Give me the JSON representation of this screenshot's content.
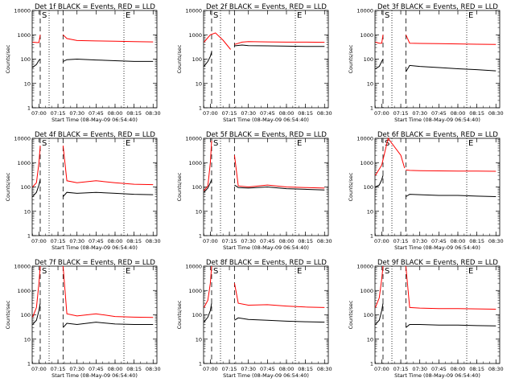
{
  "colors": {
    "events": "#000000",
    "lld": "#ff0000",
    "background": "#ffffff"
  },
  "chart_data": {
    "type": "line",
    "layout_rows": 3,
    "layout_cols": 3,
    "yscale": "log",
    "ylabel": "Counts/sec",
    "xlabel": "Start Time (08-May-09 06:54:40)",
    "xlim": [
      "06:54:40",
      "08:33"
    ],
    "ylim": [
      1,
      10000
    ],
    "xticks": [
      "07:00",
      "07:15",
      "07:30",
      "07:45",
      "08:00",
      "08:15",
      "08:30"
    ],
    "yticks": [
      1,
      10,
      100,
      1000,
      10000
    ],
    "ytick_labels": [
      "1",
      "10",
      "100",
      "1000",
      "10000"
    ],
    "series_legend": "BLACK = Events, RED = LLD",
    "markers": {
      "start": "S",
      "end": "E"
    },
    "panels": [
      {
        "title": "Det 1f BLACK = Events, RED = LLD",
        "dashed_times": [
          "07:01",
          "07:19"
        ],
        "dotted_times": [
          "07:08",
          "08:07"
        ],
        "events": {
          "x": [
            "06:55",
            "06:58",
            "07:00",
            "07:01"
          ],
          "y": [
            45,
            60,
            90,
            100
          ]
        },
        "lld": {
          "x": [
            "06:55",
            "06:58",
            "07:00",
            "07:01"
          ],
          "y": [
            500,
            480,
            480,
            1000
          ]
        },
        "post": {
          "x": [
            "07:19",
            "07:22",
            "07:30",
            "07:45",
            "08:00",
            "08:15",
            "08:30"
          ],
          "events": [
            80,
            95,
            100,
            92,
            86,
            80,
            80
          ],
          "lld": [
            1000,
            700,
            580,
            560,
            540,
            520,
            510
          ]
        }
      },
      {
        "title": "Det 2f BLACK = Events, RED = LLD",
        "dashed_times": [
          "07:01",
          "07:19"
        ],
        "dotted_times": [
          "07:08",
          "08:07"
        ],
        "events": {
          "x": [
            "06:55",
            "06:58",
            "07:00",
            "07:01"
          ],
          "y": [
            50,
            80,
            130,
            200
          ]
        },
        "lld": {
          "x": [
            "06:55",
            "07:00",
            "07:04",
            "07:10",
            "07:16"
          ],
          "y": [
            500,
            1000,
            1200,
            600,
            250
          ]
        },
        "post": {
          "x": [
            "07:19",
            "07:25",
            "07:30",
            "07:45",
            "08:00",
            "08:15",
            "08:30"
          ],
          "events": [
            350,
            380,
            360,
            350,
            340,
            330,
            330
          ],
          "lld": [
            400,
            500,
            520,
            510,
            500,
            500,
            490
          ]
        }
      },
      {
        "title": "Det 3f BLACK = Events, RED = LLD",
        "dashed_times": [
          "07:01",
          "07:19"
        ],
        "dotted_times": [
          "07:08",
          "08:07"
        ],
        "events": {
          "x": [
            "06:55",
            "06:58",
            "07:00",
            "07:01"
          ],
          "y": [
            40,
            50,
            80,
            100
          ]
        },
        "lld": {
          "x": [
            "06:55",
            "06:58",
            "07:00",
            "07:01"
          ],
          "y": [
            500,
            450,
            450,
            1000
          ]
        },
        "post": {
          "x": [
            "07:19",
            "07:22",
            "07:30",
            "07:45",
            "08:00",
            "08:15",
            "08:30"
          ],
          "events": [
            30,
            55,
            50,
            45,
            40,
            37,
            33
          ],
          "lld": [
            1000,
            450,
            440,
            430,
            420,
            410,
            400
          ]
        }
      },
      {
        "title": "Det 4f BLACK = Events, RED = LLD",
        "dashed_times": [
          "07:01",
          "07:19"
        ],
        "dotted_times": [
          "07:08",
          "08:07"
        ],
        "events": {
          "x": [
            "06:55",
            "06:58",
            "07:00",
            "07:01"
          ],
          "y": [
            40,
            60,
            120,
            200
          ]
        },
        "lld": {
          "x": [
            "06:55",
            "06:58",
            "07:00",
            "07:01"
          ],
          "y": [
            100,
            150,
            1000,
            5000
          ]
        },
        "post": {
          "x": [
            "07:19",
            "07:22",
            "07:30",
            "07:45",
            "08:00",
            "08:15",
            "08:30"
          ],
          "events": [
            40,
            60,
            55,
            60,
            55,
            50,
            48
          ],
          "lld": [
            5000,
            180,
            150,
            180,
            150,
            130,
            125
          ]
        }
      },
      {
        "title": "Det 5f BLACK = Events, RED = LLD",
        "dashed_times": [
          "07:01",
          "07:19"
        ],
        "dotted_times": [
          "07:08",
          "08:07"
        ],
        "events": {
          "x": [
            "06:55",
            "06:58",
            "07:00",
            "07:01"
          ],
          "y": [
            60,
            90,
            150,
            200
          ]
        },
        "lld": {
          "x": [
            "06:55",
            "06:58",
            "07:00",
            "07:01"
          ],
          "y": [
            70,
            110,
            1000,
            8000
          ]
        },
        "post": {
          "x": [
            "07:19",
            "07:22",
            "07:30",
            "07:45",
            "08:00",
            "08:15",
            "08:30"
          ],
          "events": [
            120,
            95,
            90,
            100,
            85,
            80,
            75
          ],
          "lld": [
            2000,
            110,
            100,
            120,
            100,
            95,
            90
          ]
        }
      },
      {
        "title": "Det 6f BLACK = Events, RED = LLD",
        "dashed_times": [
          "07:01",
          "07:19"
        ],
        "dotted_times": [
          "07:08",
          "08:07"
        ],
        "events": {
          "x": [
            "06:55",
            "06:58",
            "07:00",
            "07:01"
          ],
          "y": [
            100,
            120,
            200,
            300
          ]
        },
        "lld": {
          "x": [
            "06:55",
            "07:00",
            "07:05",
            "07:15",
            "07:18"
          ],
          "y": [
            300,
            800,
            10000,
            2000,
            600
          ]
        },
        "post": {
          "x": [
            "07:19",
            "07:22",
            "07:30",
            "07:45",
            "08:00",
            "08:15",
            "08:30"
          ],
          "events": [
            40,
            50,
            48,
            45,
            45,
            42,
            40
          ],
          "lld": [
            500,
            480,
            470,
            460,
            450,
            450,
            440
          ]
        }
      },
      {
        "title": "Det 7f BLACK = Events, RED = LLD",
        "dashed_times": [
          "07:01",
          "07:19"
        ],
        "dotted_times": [
          "07:08",
          "08:07"
        ],
        "events": {
          "x": [
            "06:55",
            "06:58",
            "07:00",
            "07:01"
          ],
          "y": [
            40,
            60,
            150,
            300
          ]
        },
        "lld": {
          "x": [
            "06:55",
            "06:58",
            "07:00",
            "07:01"
          ],
          "y": [
            80,
            200,
            2000,
            10000
          ]
        },
        "post": {
          "x": [
            "07:19",
            "07:22",
            "07:30",
            "07:45",
            "08:00",
            "08:15",
            "08:30"
          ],
          "events": [
            30,
            45,
            40,
            50,
            42,
            40,
            40
          ],
          "lld": [
            10000,
            110,
            90,
            110,
            85,
            80,
            78
          ]
        }
      },
      {
        "title": "Det 8f BLACK = Events, RED = LLD",
        "dashed_times": [
          "07:01",
          "07:19"
        ],
        "dotted_times": [
          "07:08",
          "08:07"
        ],
        "events": {
          "x": [
            "06:55",
            "06:58",
            "07:00",
            "07:01"
          ],
          "y": [
            50,
            80,
            150,
            300
          ]
        },
        "lld": {
          "x": [
            "06:55",
            "06:58",
            "07:00",
            "07:01"
          ],
          "y": [
            200,
            400,
            2000,
            10000
          ]
        },
        "post": {
          "x": [
            "07:19",
            "07:22",
            "07:30",
            "07:45",
            "08:00",
            "08:15",
            "08:30"
          ],
          "events": [
            60,
            75,
            65,
            60,
            55,
            52,
            50
          ],
          "lld": [
            2000,
            300,
            250,
            260,
            230,
            210,
            200
          ]
        }
      },
      {
        "title": "Det 9f BLACK = Events, RED = LLD",
        "dashed_times": [
          "07:01",
          "07:19"
        ],
        "dotted_times": [
          "07:08",
          "08:07"
        ],
        "events": {
          "x": [
            "06:55",
            "06:58",
            "07:00",
            "07:01"
          ],
          "y": [
            40,
            60,
            150,
            300
          ]
        },
        "lld": {
          "x": [
            "06:55",
            "06:58",
            "07:00",
            "07:01"
          ],
          "y": [
            200,
            500,
            3000,
            10000
          ]
        },
        "post": {
          "x": [
            "07:19",
            "07:22",
            "07:30",
            "07:45",
            "08:00",
            "08:15",
            "08:30"
          ],
          "events": [
            30,
            40,
            40,
            38,
            38,
            36,
            35
          ],
          "lld": [
            10000,
            200,
            190,
            180,
            180,
            175,
            170
          ]
        }
      }
    ]
  }
}
